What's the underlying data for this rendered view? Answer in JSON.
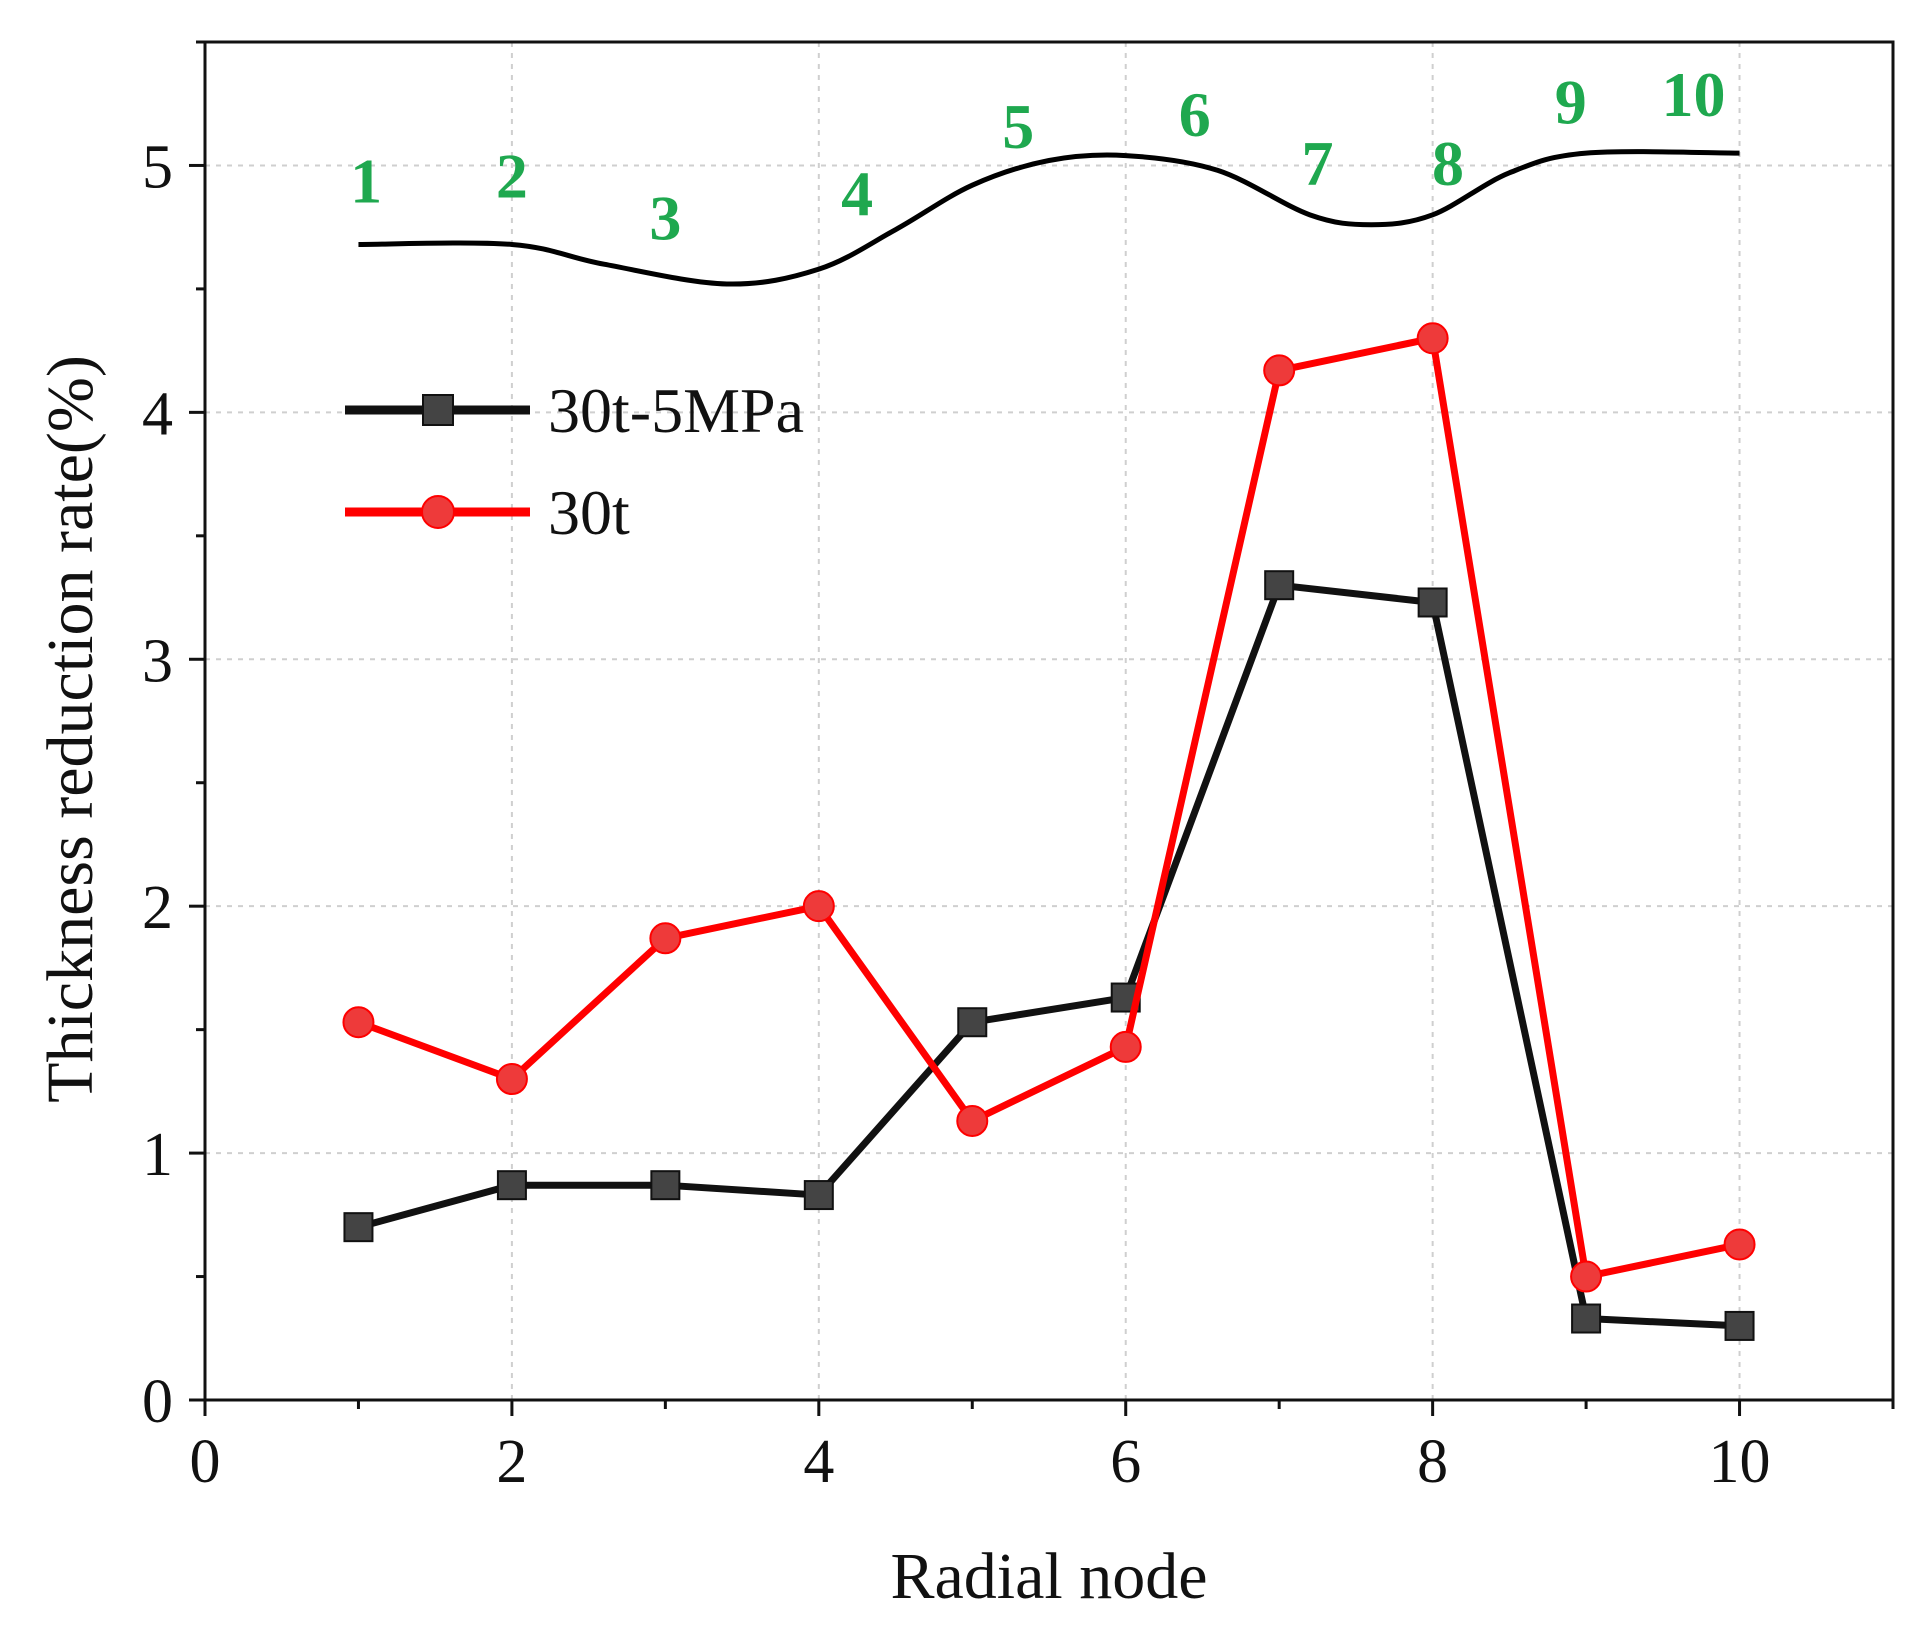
{
  "chart_data": {
    "type": "line",
    "xlabel": "Radial node",
    "ylabel": "Thickness reduction rate(%)",
    "xlim": [
      0,
      11
    ],
    "ylim": [
      0,
      5.5
    ],
    "x_ticks": [
      "0",
      "2",
      "4",
      "6",
      "8",
      "10"
    ],
    "y_ticks": [
      "0",
      "1",
      "2",
      "3",
      "4",
      "5"
    ],
    "grid": true,
    "legend_position": "upper-left",
    "series": [
      {
        "name": "30t-5MPa",
        "color": "#111111",
        "marker": "square",
        "marker_color": "#444444",
        "x": [
          1,
          2,
          3,
          4,
          5,
          6,
          7,
          8,
          9,
          10
        ],
        "values": [
          0.7,
          0.87,
          0.87,
          0.83,
          1.53,
          1.63,
          3.3,
          3.23,
          0.33,
          0.3
        ]
      },
      {
        "name": "30t",
        "color": "#ff0000",
        "marker": "circle",
        "marker_color": "#ee3a3a",
        "x": [
          1,
          2,
          3,
          4,
          5,
          6,
          7,
          8,
          9,
          10
        ],
        "values": [
          1.53,
          1.3,
          1.87,
          2.0,
          1.13,
          1.43,
          4.17,
          4.3,
          0.5,
          0.63
        ]
      }
    ],
    "profile_annotation": {
      "color": "#000000",
      "label_color": "#1fa84f",
      "profile_points": [
        [
          1.0,
          4.68
        ],
        [
          2.0,
          4.68
        ],
        [
          2.6,
          4.6
        ],
        [
          3.4,
          4.52
        ],
        [
          4.0,
          4.58
        ],
        [
          4.5,
          4.74
        ],
        [
          5.0,
          4.92
        ],
        [
          5.5,
          5.02
        ],
        [
          6.0,
          5.04
        ],
        [
          6.6,
          4.98
        ],
        [
          7.2,
          4.8
        ],
        [
          7.6,
          4.76
        ],
        [
          8.0,
          4.8
        ],
        [
          8.5,
          4.97
        ],
        [
          9.0,
          5.05
        ],
        [
          10.0,
          5.05
        ]
      ],
      "node_labels": [
        {
          "text": "1",
          "x": 1.05,
          "y": 4.85
        },
        {
          "text": "2",
          "x": 2.0,
          "y": 4.87
        },
        {
          "text": "3",
          "x": 3.0,
          "y": 4.7
        },
        {
          "text": "4",
          "x": 4.25,
          "y": 4.8
        },
        {
          "text": "5",
          "x": 5.3,
          "y": 5.07
        },
        {
          "text": "6",
          "x": 6.45,
          "y": 5.12
        },
        {
          "text": "7",
          "x": 7.25,
          "y": 4.92
        },
        {
          "text": "8",
          "x": 8.1,
          "y": 4.92
        },
        {
          "text": "9",
          "x": 8.9,
          "y": 5.17
        },
        {
          "text": "10",
          "x": 9.7,
          "y": 5.2
        }
      ]
    }
  }
}
